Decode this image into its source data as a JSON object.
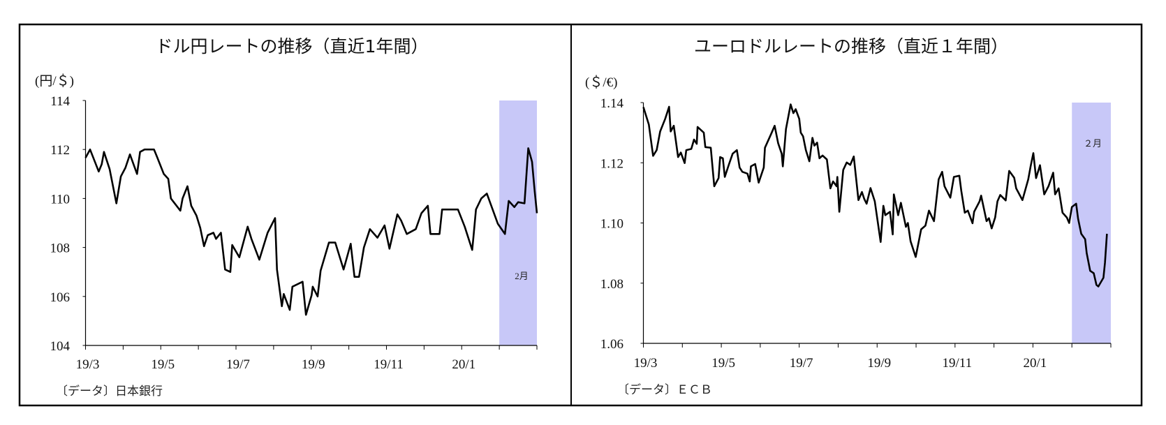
{
  "colors": {
    "line": "#000000",
    "highlight": "#c8c8f8",
    "frame": "#000000"
  },
  "chart_data": [
    {
      "type": "line",
      "title": "ドル円レートの推移（直近1年間）",
      "ylabel": "(円/＄)",
      "source": "〔データ〕日本銀行",
      "highlight_label": "2月",
      "highlight_range_months": [
        11,
        12
      ],
      "xlim_months": [
        0,
        12
      ],
      "ylim": [
        104,
        114
      ],
      "yticks": [
        104,
        106,
        108,
        110,
        112,
        114
      ],
      "ytick_labels": [
        "104",
        "106",
        "108",
        "110",
        "112",
        "114"
      ],
      "xtick_labels": [
        "19/3",
        "19/5",
        "19/7",
        "19/9",
        "19/11",
        "20/1"
      ],
      "xtick_label_months": [
        0,
        2,
        4,
        6,
        8,
        10
      ],
      "x": [
        0,
        0.12,
        0.35,
        0.43,
        0.49,
        0.64,
        0.82,
        0.94,
        1.06,
        1.18,
        1.37,
        1.45,
        1.57,
        1.82,
        1.9,
        2.08,
        2.2,
        2.27,
        2.52,
        2.58,
        2.71,
        2.81,
        2.95,
        3.05,
        3.15,
        3.25,
        3.4,
        3.47,
        3.6,
        3.71,
        3.85,
        3.9,
        4.09,
        4.31,
        4.41,
        4.62,
        4.84,
        5.04,
        5.09,
        5.22,
        5.27,
        5.43,
        5.5,
        5.77,
        5.86,
        6.01,
        6.04,
        6.17,
        6.25,
        6.47,
        6.64,
        6.86,
        7.05,
        7.15,
        7.27,
        7.4,
        7.56,
        7.76,
        7.95,
        8.08,
        8.29,
        8.39,
        8.54,
        8.78,
        8.93,
        9.1,
        9.17,
        9.41,
        9.48,
        9.9,
        10.08,
        10.28,
        10.31,
        10.38,
        10.52,
        10.67,
        10.96,
        11.15,
        11.25,
        11.4,
        11.5,
        11.67,
        11.77,
        11.87,
        11.94,
        12
      ],
      "values": [
        111.66,
        112.0,
        111.1,
        111.4,
        111.9,
        111.2,
        109.8,
        110.9,
        111.25,
        111.8,
        111.0,
        111.9,
        112.0,
        112.0,
        111.7,
        111.0,
        110.8,
        110.0,
        109.5,
        110.0,
        110.5,
        109.7,
        109.3,
        108.8,
        108.05,
        108.5,
        108.6,
        108.35,
        108.6,
        107.1,
        107.0,
        108.1,
        107.6,
        108.85,
        108.35,
        107.5,
        108.6,
        109.2,
        107.1,
        105.6,
        106.1,
        105.45,
        106.4,
        106.6,
        105.25,
        106.05,
        106.4,
        106.0,
        107.05,
        108.2,
        108.2,
        107.1,
        108.15,
        106.8,
        106.8,
        108.0,
        108.75,
        108.4,
        108.9,
        107.95,
        109.35,
        109.1,
        108.55,
        108.75,
        109.4,
        109.7,
        108.55,
        108.55,
        109.55,
        109.55,
        108.85,
        107.9,
        108.4,
        109.55,
        110.0,
        110.2,
        108.97,
        108.55,
        109.9,
        109.65,
        109.85,
        109.8,
        112.05,
        111.5,
        110.3,
        109.4
      ]
    },
    {
      "type": "line",
      "title": "ユーロドルレートの推移（直近１年間）",
      "ylabel": "(＄/€)",
      "source": "〔データ〕ＥＣＢ",
      "highlight_label": "２月",
      "highlight_range_months": [
        11,
        12
      ],
      "xlim_months": [
        0,
        12
      ],
      "ylim": [
        1.06,
        1.14
      ],
      "yticks": [
        1.06,
        1.08,
        1.1,
        1.12,
        1.14
      ],
      "ytick_labels": [
        "1.06",
        "1.08",
        "1.10",
        "1.12",
        "1.14"
      ],
      "xtick_labels": [
        "19/3",
        "19/5",
        "19/7",
        "19/9",
        "19/11",
        "20/1"
      ],
      "xtick_label_months": [
        0,
        2,
        4,
        6,
        8,
        10
      ],
      "x": [
        0,
        0.14,
        0.25,
        0.34,
        0.43,
        0.56,
        0.66,
        0.7,
        0.78,
        0.89,
        0.96,
        1.06,
        1.1,
        1.23,
        1.3,
        1.37,
        1.39,
        1.55,
        1.59,
        1.73,
        1.82,
        1.93,
        1.97,
        2.04,
        2.09,
        2.2,
        2.29,
        2.4,
        2.47,
        2.54,
        2.67,
        2.73,
        2.76,
        2.87,
        2.96,
        3.09,
        3.12,
        3.28,
        3.37,
        3.46,
        3.55,
        3.58,
        3.66,
        3.78,
        3.85,
        3.91,
        4.0,
        4.04,
        4.1,
        4.17,
        4.26,
        4.34,
        4.39,
        4.46,
        4.52,
        4.6,
        4.71,
        4.8,
        4.87,
        4.96,
        4.98,
        5.03,
        5.13,
        5.22,
        5.31,
        5.4,
        5.52,
        5.61,
        5.67,
        5.73,
        5.83,
        5.94,
        6.09,
        6.16,
        6.21,
        6.33,
        6.4,
        6.43,
        6.54,
        6.61,
        6.74,
        6.79,
        6.86,
        6.99,
        7.13,
        7.24,
        7.33,
        7.46,
        7.58,
        7.67,
        7.73,
        7.88,
        7.97,
        8.11,
        8.16,
        8.25,
        8.33,
        8.45,
        8.49,
        8.63,
        8.67,
        8.81,
        8.87,
        8.94,
        9.03,
        9.09,
        9.16,
        9.3,
        9.39,
        9.52,
        9.57,
        9.73,
        9.88,
        9.94,
        10.01,
        10.08,
        10.18,
        10.29,
        10.4,
        10.52,
        10.57,
        10.66,
        10.76,
        10.87,
        10.93,
        11.0,
        11.11,
        11.16,
        11.24,
        11.34,
        11.38,
        11.47,
        11.56,
        11.63,
        11.68,
        11.81,
        11.85,
        11.9
      ],
      "values": [
        1.1385,
        1.1327,
        1.1223,
        1.1242,
        1.1304,
        1.1346,
        1.1386,
        1.1304,
        1.1323,
        1.1219,
        1.1234,
        1.1199,
        1.1242,
        1.1246,
        1.1277,
        1.1263,
        1.1319,
        1.13,
        1.1252,
        1.125,
        1.1122,
        1.1149,
        1.1219,
        1.1215,
        1.1153,
        1.1196,
        1.123,
        1.1242,
        1.1184,
        1.117,
        1.1164,
        1.1138,
        1.1188,
        1.1196,
        1.1134,
        1.1184,
        1.125,
        1.1296,
        1.1323,
        1.1265,
        1.123,
        1.1188,
        1.1312,
        1.1394,
        1.1365,
        1.1378,
        1.1346,
        1.13,
        1.1288,
        1.1242,
        1.1205,
        1.1283,
        1.1257,
        1.1267,
        1.1215,
        1.1224,
        1.1211,
        1.1115,
        1.1138,
        1.1122,
        1.1153,
        1.1037,
        1.1176,
        1.1201,
        1.1193,
        1.1221,
        1.1076,
        1.1103,
        1.108,
        1.1064,
        1.1116,
        1.1072,
        1.0937,
        1.1057,
        1.1026,
        1.1037,
        1.0962,
        1.1095,
        1.1026,
        1.1067,
        1.0987,
        1.1,
        1.0939,
        1.0887,
        1.0979,
        1.0991,
        1.1041,
        1.1006,
        1.1145,
        1.117,
        1.1122,
        1.1084,
        1.1153,
        1.1157,
        1.1107,
        1.1034,
        1.1041,
        1.0999,
        1.1037,
        1.1072,
        1.1091,
        1.1006,
        1.1016,
        1.0982,
        1.1018,
        1.1072,
        1.1093,
        1.1075,
        1.1173,
        1.115,
        1.1115,
        1.1076,
        1.1145,
        1.1188,
        1.1232,
        1.1149,
        1.1192,
        1.1095,
        1.1122,
        1.1167,
        1.1095,
        1.1115,
        1.1034,
        1.1018,
        1.1,
        1.1053,
        1.1064,
        1.1014,
        1.0964,
        1.0946,
        1.09,
        1.0841,
        1.0833,
        1.0794,
        1.0789,
        1.0818,
        1.0868,
        1.0964
      ]
    }
  ]
}
